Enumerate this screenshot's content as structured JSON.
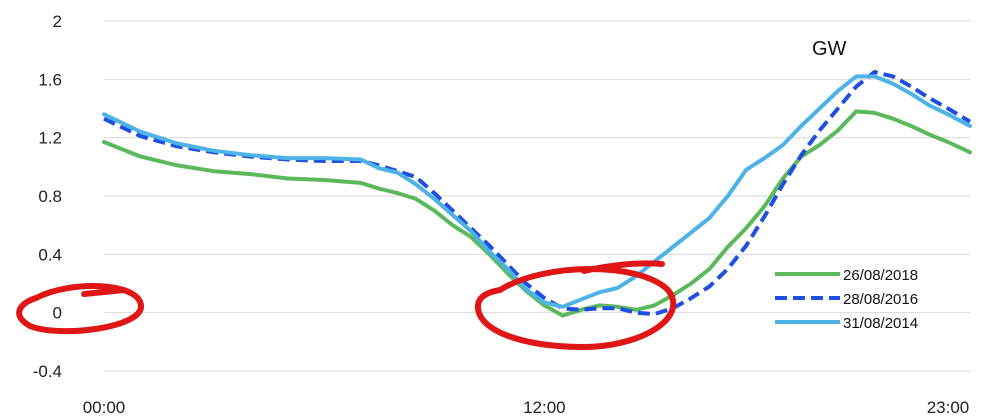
{
  "chart_data": {
    "type": "line",
    "unit_label": "GW",
    "x_tick_labels": [
      "00:00",
      "12:00",
      "23:00"
    ],
    "x_ticks_hours": [
      0,
      12,
      23
    ],
    "xlim": [
      0,
      23.6
    ],
    "ylim": [
      -0.4,
      2.0
    ],
    "y_ticks": [
      -0.4,
      0,
      0.4,
      0.8,
      1.2,
      1.6,
      2
    ],
    "y_tick_labels": [
      "-0.4",
      "0",
      "0.4",
      "0.8",
      "1.2",
      "1.6",
      "2"
    ],
    "grid": "horizontal",
    "legend_position": "bottom-right",
    "series": [
      {
        "name": "26/08/2018",
        "color": "#5cb85c",
        "dash": "solid",
        "points": [
          [
            0,
            1.17
          ],
          [
            0.5,
            1.12
          ],
          [
            1,
            1.07
          ],
          [
            2,
            1.01
          ],
          [
            3,
            0.97
          ],
          [
            4,
            0.95
          ],
          [
            5,
            0.92
          ],
          [
            6,
            0.91
          ],
          [
            7,
            0.89
          ],
          [
            7.5,
            0.85
          ],
          [
            8,
            0.82
          ],
          [
            8.5,
            0.78
          ],
          [
            9,
            0.7
          ],
          [
            9.5,
            0.6
          ],
          [
            10,
            0.52
          ],
          [
            10.5,
            0.4
          ],
          [
            11,
            0.27
          ],
          [
            11.5,
            0.15
          ],
          [
            12,
            0.05
          ],
          [
            12.5,
            -0.02
          ],
          [
            13,
            0.02
          ],
          [
            13.5,
            0.05
          ],
          [
            14,
            0.04
          ],
          [
            14.5,
            0.02
          ],
          [
            15,
            0.05
          ],
          [
            15.5,
            0.12
          ],
          [
            16,
            0.2
          ],
          [
            16.5,
            0.3
          ],
          [
            17,
            0.45
          ],
          [
            17.5,
            0.58
          ],
          [
            18,
            0.73
          ],
          [
            18.5,
            0.92
          ],
          [
            19,
            1.07
          ],
          [
            19.5,
            1.15
          ],
          [
            20,
            1.25
          ],
          [
            20.5,
            1.38
          ],
          [
            21,
            1.37
          ],
          [
            21.5,
            1.33
          ],
          [
            22,
            1.28
          ],
          [
            22.5,
            1.22
          ],
          [
            23,
            1.17
          ],
          [
            23.6,
            1.1
          ]
        ]
      },
      {
        "name": "28/08/2016",
        "color": "#1f4fe0",
        "dash": "dashed",
        "points": [
          [
            0,
            1.33
          ],
          [
            0.5,
            1.27
          ],
          [
            1,
            1.21
          ],
          [
            2,
            1.14
          ],
          [
            3,
            1.1
          ],
          [
            4,
            1.07
          ],
          [
            5,
            1.05
          ],
          [
            6,
            1.04
          ],
          [
            7,
            1.04
          ],
          [
            7.5,
            1.01
          ],
          [
            8,
            0.97
          ],
          [
            8.5,
            0.93
          ],
          [
            9,
            0.82
          ],
          [
            9.5,
            0.7
          ],
          [
            10,
            0.58
          ],
          [
            10.5,
            0.46
          ],
          [
            11,
            0.33
          ],
          [
            11.5,
            0.2
          ],
          [
            12,
            0.1
          ],
          [
            12.5,
            0.03
          ],
          [
            13,
            0.02
          ],
          [
            13.5,
            0.03
          ],
          [
            14,
            0.03
          ],
          [
            14.5,
            0.0
          ],
          [
            15,
            -0.01
          ],
          [
            15.5,
            0.03
          ],
          [
            16,
            0.1
          ],
          [
            16.5,
            0.18
          ],
          [
            17,
            0.3
          ],
          [
            17.5,
            0.46
          ],
          [
            18,
            0.66
          ],
          [
            18.5,
            0.88
          ],
          [
            19,
            1.08
          ],
          [
            19.5,
            1.25
          ],
          [
            20,
            1.4
          ],
          [
            20.5,
            1.55
          ],
          [
            21,
            1.65
          ],
          [
            21.5,
            1.62
          ],
          [
            22,
            1.55
          ],
          [
            22.5,
            1.47
          ],
          [
            23,
            1.4
          ],
          [
            23.6,
            1.31
          ]
        ]
      },
      {
        "name": "31/08/2014",
        "color": "#4db3e6",
        "dash": "solid",
        "points": [
          [
            0,
            1.36
          ],
          [
            0.5,
            1.3
          ],
          [
            1,
            1.24
          ],
          [
            2,
            1.16
          ],
          [
            3,
            1.11
          ],
          [
            4,
            1.08
          ],
          [
            5,
            1.06
          ],
          [
            6,
            1.06
          ],
          [
            7,
            1.05
          ],
          [
            7.5,
            0.99
          ],
          [
            8,
            0.96
          ],
          [
            8.5,
            0.88
          ],
          [
            9,
            0.78
          ],
          [
            9.5,
            0.67
          ],
          [
            10,
            0.56
          ],
          [
            10.5,
            0.42
          ],
          [
            11,
            0.3
          ],
          [
            11.5,
            0.16
          ],
          [
            12,
            0.07
          ],
          [
            12.5,
            0.04
          ],
          [
            13,
            0.09
          ],
          [
            13.5,
            0.14
          ],
          [
            14,
            0.17
          ],
          [
            14.5,
            0.25
          ],
          [
            15,
            0.35
          ],
          [
            15.5,
            0.45
          ],
          [
            16,
            0.55
          ],
          [
            16.5,
            0.65
          ],
          [
            17,
            0.8
          ],
          [
            17.5,
            0.98
          ],
          [
            18,
            1.06
          ],
          [
            18.5,
            1.15
          ],
          [
            19,
            1.28
          ],
          [
            19.5,
            1.4
          ],
          [
            20,
            1.52
          ],
          [
            20.5,
            1.62
          ],
          [
            21,
            1.62
          ],
          [
            21.5,
            1.57
          ],
          [
            22,
            1.5
          ],
          [
            22.5,
            1.42
          ],
          [
            23,
            1.36
          ],
          [
            23.6,
            1.28
          ]
        ]
      }
    ]
  }
}
